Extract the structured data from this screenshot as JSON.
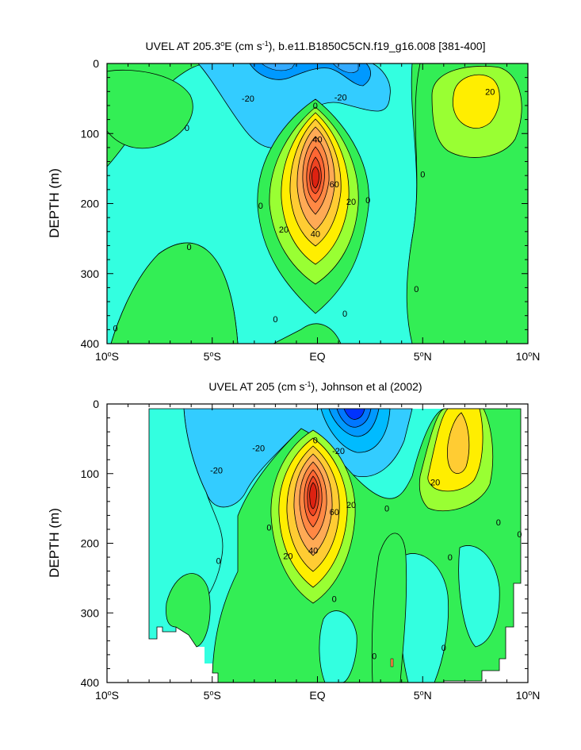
{
  "chart_data": [
    {
      "type": "heatmap",
      "subtype": "filled-contour",
      "title_prefix": "UVEL AT 205.3",
      "title_degree": "o",
      "title_mid": "E (cm s",
      "title_sup": "-1",
      "title_suffix": "), b.e11.B1850C5CN.f19_g16.008 [381-400]",
      "ylabel": "DEPTH (m)",
      "xlabel": "",
      "x_ticks": [
        {
          "value": -10,
          "num": "10",
          "deg": "o",
          "hem": "S"
        },
        {
          "value": -5,
          "num": "5",
          "deg": "o",
          "hem": "S"
        },
        {
          "value": 0,
          "num": "EQ",
          "deg": "",
          "hem": ""
        },
        {
          "value": 5,
          "num": "5",
          "deg": "o",
          "hem": "N"
        },
        {
          "value": 10,
          "num": "10",
          "deg": "o",
          "hem": "N"
        }
      ],
      "y_ticks": [
        "0",
        "100",
        "200",
        "300",
        "400"
      ],
      "y_tick_values": [
        0,
        100,
        200,
        300,
        400
      ],
      "xlim": [
        -10,
        10
      ],
      "ylim": [
        400,
        0
      ],
      "contour_interval": 10,
      "color_levels": {
        "-40": "#0033ff",
        "-30": "#0099ff",
        "-20": "#33ccff",
        "-10": "#33ffe0",
        "0": "#33ee55",
        "10": "#99ff33",
        "20": "#ffee00",
        "30": "#ffcc33",
        "40": "#ffaa55",
        "50": "#ff8844",
        "60": "#ff6633",
        "70": "#ee4422",
        "80": "#dd2211"
      },
      "features": [
        {
          "name": "equatorial undercurrent core",
          "lon": 0,
          "depth": 155,
          "max_speed": 85
        },
        {
          "name": "surface westward flow",
          "lon": 1.2,
          "depth": 5,
          "min_speed": -30
        },
        {
          "name": "north eastward flow",
          "lon": 7.5,
          "depth": 60,
          "max_speed": 25
        }
      ],
      "contour_labels": [
        {
          "text": "-20",
          "lon": -3.3,
          "depth": 50
        },
        {
          "text": "-20",
          "lon": 1.1,
          "depth": 48
        },
        {
          "text": "20",
          "lon": 8.2,
          "depth": 40
        },
        {
          "text": "0",
          "lon": -6.2,
          "depth": 92
        },
        {
          "text": "0",
          "lon": -0.1,
          "depth": 60
        },
        {
          "text": "40",
          "lon": 0,
          "depth": 108
        },
        {
          "text": "60",
          "lon": 0.8,
          "depth": 172
        },
        {
          "text": "20",
          "lon": 1.6,
          "depth": 197
        },
        {
          "text": "0",
          "lon": 2.4,
          "depth": 195
        },
        {
          "text": "0",
          "lon": -2.7,
          "depth": 203
        },
        {
          "text": "20",
          "lon": -1.6,
          "depth": 237
        },
        {
          "text": "40",
          "lon": -0.1,
          "depth": 243
        },
        {
          "text": "0",
          "lon": -6.1,
          "depth": 262
        },
        {
          "text": "0",
          "lon": 5,
          "depth": 158
        },
        {
          "text": "0",
          "lon": 4.7,
          "depth": 322
        },
        {
          "text": "0",
          "lon": -2,
          "depth": 365
        },
        {
          "text": "0",
          "lon": 1.3,
          "depth": 357
        },
        {
          "text": "0",
          "lon": -9.6,
          "depth": 378
        }
      ]
    },
    {
      "type": "heatmap",
      "subtype": "filled-contour",
      "title_prefix": "UVEL AT 205 (cm s",
      "title_sup": "-1",
      "title_suffix": "), Johnson et al (2002)",
      "ylabel": "DEPTH (m)",
      "xlabel": "",
      "x_ticks": [
        {
          "value": -10,
          "num": "10",
          "deg": "o",
          "hem": "S"
        },
        {
          "value": -5,
          "num": "5",
          "deg": "o",
          "hem": "S"
        },
        {
          "value": 0,
          "num": "EQ",
          "deg": "",
          "hem": ""
        },
        {
          "value": 5,
          "num": "5",
          "deg": "o",
          "hem": "N"
        },
        {
          "value": 10,
          "num": "10",
          "deg": "o",
          "hem": "N"
        }
      ],
      "y_ticks": [
        "0",
        "100",
        "200",
        "300",
        "400"
      ],
      "y_tick_values": [
        0,
        100,
        200,
        300,
        400
      ],
      "xlim": [
        -10,
        10
      ],
      "ylim": [
        400,
        0
      ],
      "contour_interval": 10,
      "data_extent_lon": [
        -8,
        9.7
      ],
      "features": [
        {
          "name": "equatorial undercurrent core",
          "lon": 0,
          "depth": 135,
          "max_speed": 95
        },
        {
          "name": "surface westward flow",
          "lon": 1.5,
          "depth": 15,
          "min_speed": -50
        },
        {
          "name": "north eastward flow",
          "lon": 6.8,
          "depth": 55,
          "max_speed": 30
        }
      ],
      "contour_labels": [
        {
          "text": "-20",
          "lon": -4.8,
          "depth": 95
        },
        {
          "text": "-20",
          "lon": -2.8,
          "depth": 63
        },
        {
          "text": "0",
          "lon": -0.1,
          "depth": 52
        },
        {
          "text": "-20",
          "lon": 1,
          "depth": 67
        },
        {
          "text": "20",
          "lon": 1.6,
          "depth": 145
        },
        {
          "text": "60",
          "lon": 0.8,
          "depth": 155
        },
        {
          "text": "20",
          "lon": 5.6,
          "depth": 112
        },
        {
          "text": "0",
          "lon": 3.3,
          "depth": 150
        },
        {
          "text": "0",
          "lon": -2.3,
          "depth": 177
        },
        {
          "text": "20",
          "lon": -1.4,
          "depth": 218
        },
        {
          "text": "40",
          "lon": -0.2,
          "depth": 210
        },
        {
          "text": "0",
          "lon": -4.7,
          "depth": 225
        },
        {
          "text": "0",
          "lon": 0.8,
          "depth": 280
        },
        {
          "text": "0",
          "lon": 6.3,
          "depth": 220
        },
        {
          "text": "0",
          "lon": 8.6,
          "depth": 170
        },
        {
          "text": "0",
          "lon": 9.6,
          "depth": 187
        },
        {
          "text": "0",
          "lon": 2.7,
          "depth": 362
        },
        {
          "text": "0",
          "lon": 6,
          "depth": 350
        }
      ]
    }
  ]
}
